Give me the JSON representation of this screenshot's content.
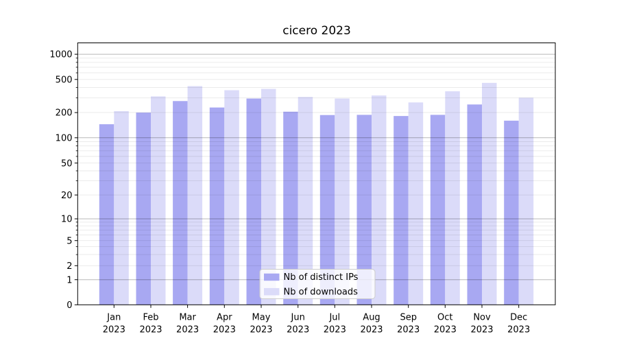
{
  "chart_data": {
    "type": "bar",
    "title": "cicero 2023",
    "categories": [
      "Jan",
      "Feb",
      "Mar",
      "Apr",
      "May",
      "Jun",
      "Jul",
      "Aug",
      "Sep",
      "Oct",
      "Nov",
      "Dec"
    ],
    "year_label": "2023",
    "series": [
      {
        "name": "Nb of distinct IPs",
        "color": "#a8a8f2",
        "values": [
          145,
          200,
          275,
          230,
          295,
          205,
          187,
          188,
          182,
          188,
          250,
          160
        ]
      },
      {
        "name": "Nb of downloads",
        "color": "#dbdbf9",
        "values": [
          208,
          313,
          415,
          371,
          385,
          308,
          295,
          321,
          265,
          360,
          455,
          302
        ]
      }
    ],
    "xlabel": "",
    "ylabel": "",
    "yscale": "symlog",
    "yticks": [
      0,
      1,
      2,
      5,
      10,
      20,
      50,
      100,
      200,
      500,
      1000
    ],
    "ylim": [
      0,
      1500
    ],
    "grid": true,
    "grid_which": "both",
    "legend_position": "lower center"
  },
  "colors": {
    "major_grid": "rgba(0,0,0,0.28)",
    "minor_grid": "rgba(0,0,0,0.09)",
    "spine": "#000000",
    "background": "#ffffff"
  }
}
